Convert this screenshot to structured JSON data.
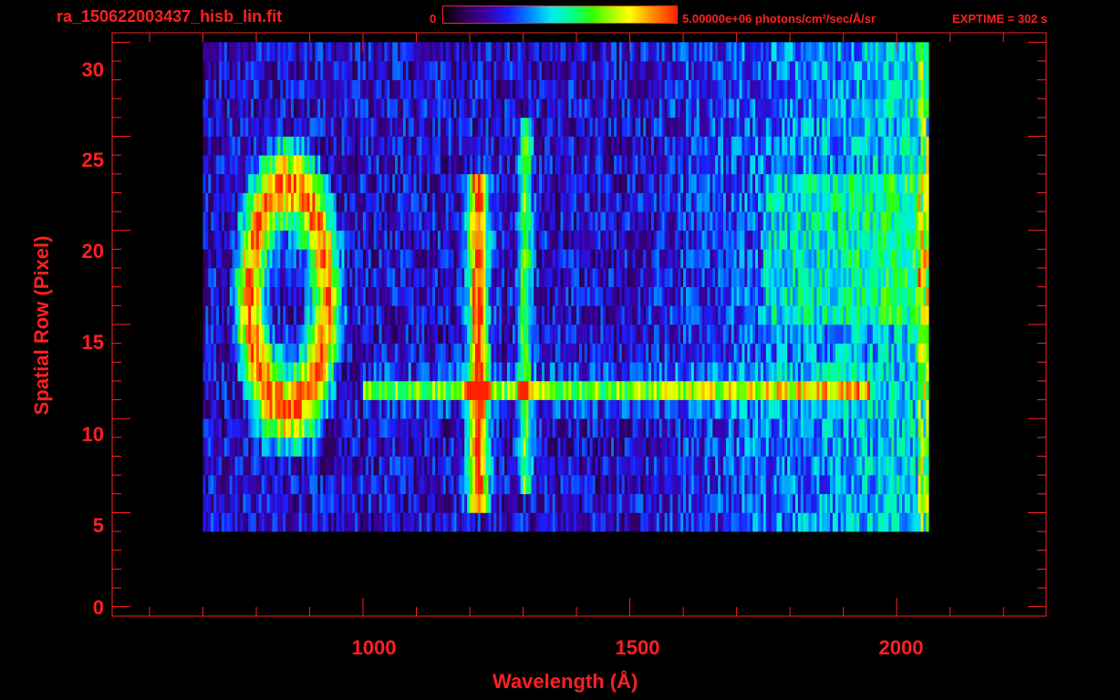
{
  "header": {
    "file_title": "ra_150622003437_hisb_lin.fit",
    "colorbar_min_label": "0",
    "colorbar_max_label": "5.00000e+06 photons/cm²/sec/Å/sr",
    "exptime_label": "EXPTIME = 302 s"
  },
  "colors": {
    "axis": "#ff2020",
    "background": "#000000"
  },
  "chart_data": {
    "type": "heatmap",
    "title": "ra_150622003437_hisb_lin.fit",
    "xlabel": "Wavelength (Å)",
    "ylabel": "Spatial Row (Pixel)",
    "xlim": [
      530,
      2280
    ],
    "ylim": [
      -0.5,
      30.5
    ],
    "x_ticks": [
      1000,
      1500,
      2000
    ],
    "y_ticks": [
      0,
      5,
      10,
      15,
      20,
      25,
      30
    ],
    "x_tick_labels": [
      "1000",
      "1500",
      "2000"
    ],
    "y_tick_labels": [
      "0",
      "5",
      "10",
      "15",
      "20",
      "25",
      "30"
    ],
    "colorbar": {
      "min": 0,
      "max": 5000000,
      "units": "photons/cm²/sec/Å/sr",
      "colormap": "rainbow"
    },
    "exposure_time_s": 302,
    "data_extent": {
      "wavelength": [
        700,
        2060
      ],
      "rows": [
        4,
        30
      ]
    },
    "features": [
      {
        "name": "ring-shaped emission",
        "center_wavelength": 860,
        "rows": [
          10,
          23
        ],
        "level": 0.7
      },
      {
        "name": "vertical emission line",
        "wavelength": 1216,
        "rows": [
          5,
          23
        ],
        "level": 0.8
      },
      {
        "name": "vertical emission line",
        "wavelength": 1304,
        "rows": [
          6,
          26
        ],
        "level": 0.45
      },
      {
        "name": "horizontal band",
        "row": 11.5,
        "wavelength_range": [
          1000,
          1950
        ],
        "level": 0.45
      },
      {
        "name": "continuum rise",
        "wavelength_range": [
          1750,
          2060
        ],
        "rows": [
          15,
          23
        ],
        "level": 0.5
      }
    ]
  }
}
